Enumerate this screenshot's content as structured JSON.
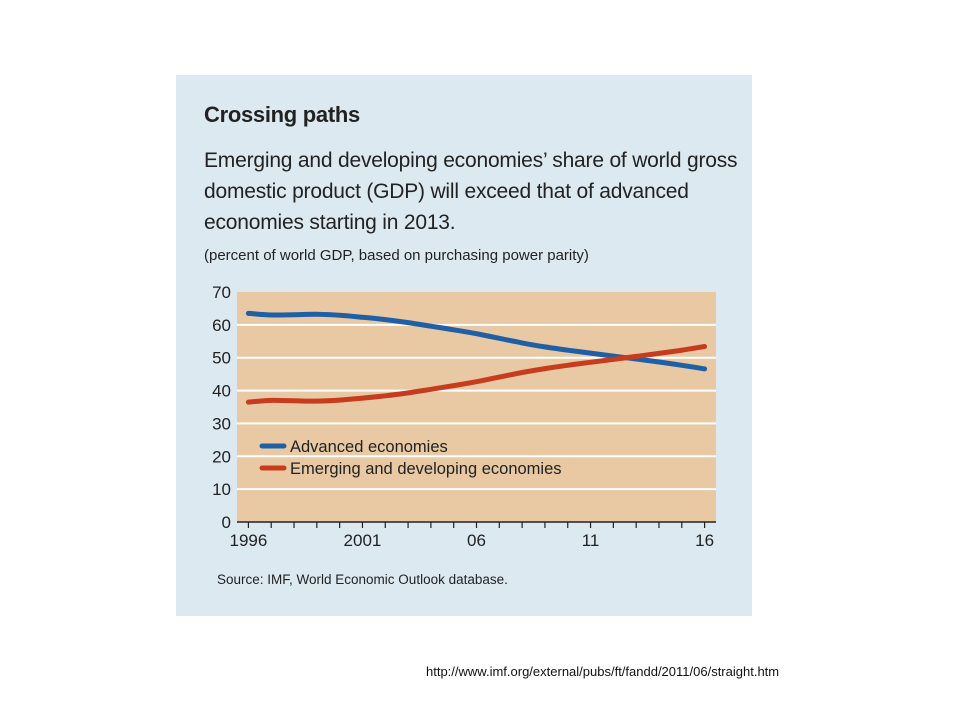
{
  "header": {
    "title": "Crossing paths",
    "subtitle": "Emerging and developing economies’ share of world gross domestic product (GDP) will exceed that of advanced economies starting in 2013.",
    "unit_note": "(percent of world GDP, based on purchasing power parity)"
  },
  "footer": {
    "source": "Source: IMF, World Economic Outlook database.",
    "url": "http://www.imf.org/external/pubs/ft/fandd/2011/06/straight.htm"
  },
  "colors": {
    "panel_bg": "#dde9f1",
    "plot_bg": "#e8c9a4",
    "advanced": "#1f5fa6",
    "emerging": "#c83c1e"
  },
  "chart_data": {
    "type": "line",
    "title": "Crossing paths",
    "xlabel": "",
    "ylabel": "",
    "xlim": [
      1995.5,
      2016.5
    ],
    "ylim": [
      0,
      70
    ],
    "x_ticks": [
      1996,
      2001,
      2006,
      2011,
      2016
    ],
    "x_tick_labels": [
      "1996",
      "2001",
      "06",
      "11",
      "16"
    ],
    "y_ticks": [
      0,
      10,
      20,
      30,
      40,
      50,
      60,
      70
    ],
    "y_tick_labels": [
      "0",
      "10",
      "20",
      "30",
      "40",
      "50",
      "60",
      "70"
    ],
    "grid": "horizontal",
    "legend_position": "middle-left",
    "x": [
      1996,
      1997,
      1998,
      1999,
      2000,
      2001,
      2002,
      2003,
      2004,
      2005,
      2006,
      2007,
      2008,
      2009,
      2010,
      2011,
      2012,
      2013,
      2014,
      2015,
      2016
    ],
    "series": [
      {
        "name": "Advanced economies",
        "color": "#1f5fa6",
        "values": [
          63.5,
          63.0,
          63.1,
          63.2,
          62.9,
          62.3,
          61.6,
          60.7,
          59.6,
          58.5,
          57.3,
          55.9,
          54.5,
          53.3,
          52.3,
          51.4,
          50.5,
          49.6,
          48.7,
          47.7,
          46.6
        ]
      },
      {
        "name": "Emerging and developing economies",
        "color": "#c83c1e",
        "values": [
          36.5,
          37.0,
          36.9,
          36.8,
          37.1,
          37.7,
          38.4,
          39.3,
          40.4,
          41.5,
          42.7,
          44.1,
          45.5,
          46.7,
          47.7,
          48.6,
          49.5,
          50.4,
          51.3,
          52.3,
          53.4
        ]
      }
    ]
  }
}
